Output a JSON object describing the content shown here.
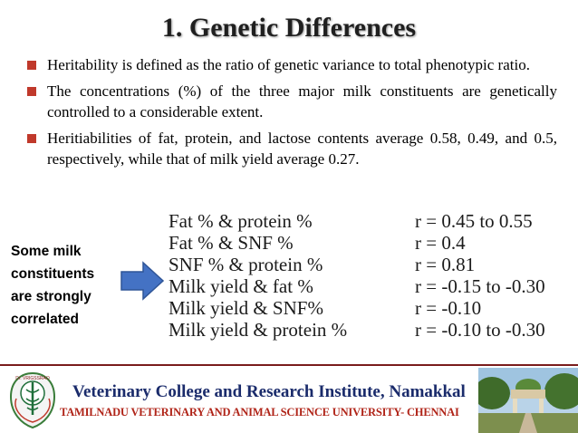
{
  "title": "1. Genetic Differences",
  "bullets": [
    "Heritability is defined as the ratio of genetic variance to total phenotypic ratio.",
    "The concentrations (%) of the three major milk constituents are genetically controlled to a considerable extent.",
    "Heritiabilities of fat, protein, and lactose contents average 0.58, 0.49, and 0.5, respectively, while that of milk yield average 0.27."
  ],
  "side_label": [
    "Some milk",
    "constituents",
    "are strongly",
    "correlated"
  ],
  "correlations": [
    {
      "pair": "Fat % & protein %",
      "value": "r = 0.45 to 0.55"
    },
    {
      "pair": "Fat % & SNF %",
      "value": "r = 0.4"
    },
    {
      "pair": "SNF % & protein %",
      "value": "r = 0.81"
    },
    {
      "pair": "Milk yield & fat %",
      "value": "r = -0.15 to -0.30"
    },
    {
      "pair": "Milk yield & SNF%",
      "value": "r = -0.10"
    },
    {
      "pair": "Milk yield & protein %",
      "value": "r = -0.10 to -0.30"
    }
  ],
  "footer": {
    "institute": "Veterinary College and Research Institute, Namakkal",
    "university": "TAMILNADU VETERINARY AND ANIMAL SCIENCE UNIVERSITY- CHENNAI",
    "logo_text": "Dr. VRIGSSRAO"
  },
  "colors": {
    "bullet": "#c0392b",
    "arrow_fill": "#4472c4",
    "institute_text": "#1a2b6b",
    "university_text": "#b02418",
    "divider": "#7a1c1c"
  },
  "icons": [
    "square-bullet-icon",
    "right-arrow-icon",
    "college-logo-icon",
    "campus-photo"
  ]
}
